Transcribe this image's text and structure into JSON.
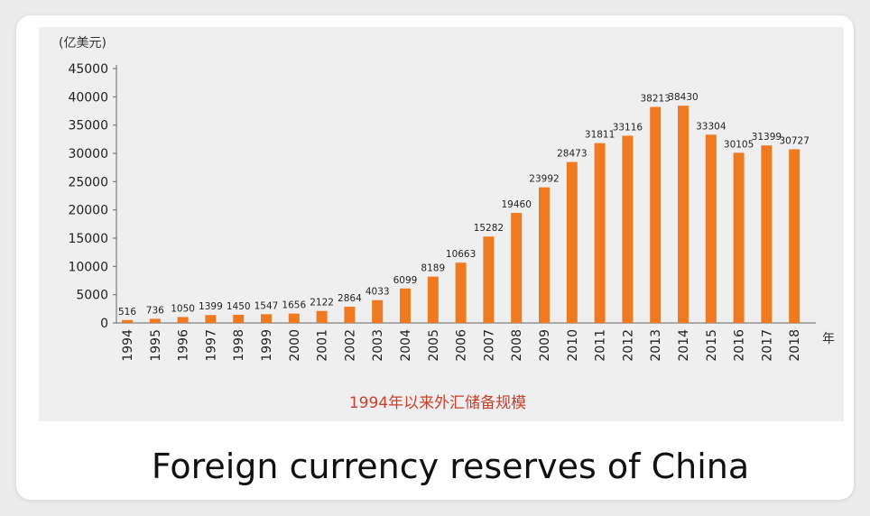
{
  "chart_data": {
    "type": "bar",
    "title": "1994年以来外汇储备规模",
    "y_unit_label": "(亿美元)",
    "x_unit_label": "年",
    "ylim": [
      0,
      45000
    ],
    "y_ticks": [
      0,
      5000,
      10000,
      15000,
      20000,
      25000,
      30000,
      35000,
      40000,
      45000
    ],
    "categories": [
      "1994",
      "1995",
      "1996",
      "1997",
      "1998",
      "1999",
      "2000",
      "2001",
      "2002",
      "2003",
      "2004",
      "2005",
      "2006",
      "2007",
      "2008",
      "2009",
      "2010",
      "2011",
      "2012",
      "2013",
      "2014",
      "2015",
      "2016",
      "2017",
      "2018"
    ],
    "values": [
      516,
      736,
      1050,
      1399,
      1450,
      1547,
      1656,
      2122,
      2864,
      4033,
      6099,
      8189,
      10663,
      15282,
      19460,
      23992,
      28473,
      31811,
      33116,
      38213,
      38430,
      33304,
      30105,
      31399,
      30727
    ],
    "bar_color": "#f07a22",
    "title_color": "#c9412e",
    "grid": false
  },
  "caption": "Foreign currency reserves of China"
}
